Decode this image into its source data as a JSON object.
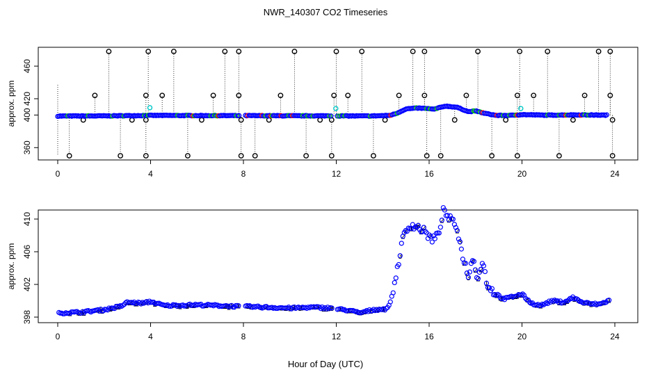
{
  "title": "NWR_140307  CO2 Timeseries",
  "xlabel": "Hour of Day (UTC)",
  "colors": {
    "main": "#0000ff",
    "alt1": "#ff0000",
    "alt2": "#00c800",
    "flag": "#00c8c8",
    "outlier": "#000000"
  },
  "chart_data": [
    {
      "type": "scatter",
      "ylabel": "approx. ppm",
      "xlim": [
        0,
        24
      ],
      "ylim": [
        350,
        480
      ],
      "xticks": [
        0,
        4,
        8,
        12,
        16,
        20,
        24
      ],
      "yticks": [
        360,
        400,
        420,
        460
      ],
      "ytick_labels": [
        "360",
        "400",
        "420",
        "460"
      ],
      "baseline": [
        [
          0.0,
          398.7
        ],
        [
          2.0,
          398.9
        ],
        [
          3.6,
          399.3
        ],
        [
          3.8,
          399.5
        ],
        [
          4.1,
          399.5
        ],
        [
          6.0,
          399.3
        ],
        [
          7.8,
          399.2
        ],
        [
          8.2,
          399.2
        ],
        [
          10.0,
          399.0
        ],
        [
          11.9,
          399.0
        ],
        [
          12.1,
          398.9
        ],
        [
          13.5,
          398.8
        ],
        [
          14.3,
          399.5
        ],
        [
          14.6,
          402.0
        ],
        [
          15.0,
          407.5
        ],
        [
          15.5,
          408.5
        ],
        [
          15.9,
          408.0
        ],
        [
          16.2,
          407.0
        ],
        [
          16.7,
          411.0
        ],
        [
          17.2,
          409.5
        ],
        [
          17.7,
          404.0
        ],
        [
          18.0,
          405.0
        ],
        [
          18.4,
          402.0
        ],
        [
          18.9,
          399.5
        ],
        [
          19.5,
          399.5
        ],
        [
          20.0,
          400.5
        ],
        [
          21.0,
          399.8
        ],
        [
          22.3,
          400.2
        ],
        [
          23.7,
          399.8
        ]
      ],
      "outliers_high": [
        2.2,
        3.9,
        5.0,
        7.2,
        7.8,
        10.2,
        12.0,
        13.1,
        15.3,
        15.8,
        18.1,
        19.9,
        21.1,
        23.3,
        23.8
      ],
      "outliers_high_value": 478,
      "outliers_low": [
        0.5,
        2.7,
        3.8,
        5.6,
        7.9,
        8.5,
        10.7,
        11.8,
        13.6,
        15.9,
        16.5,
        18.7,
        19.8,
        21.6,
        23.9
      ],
      "outliers_low_value": 350,
      "outliers_mid": [
        1.6,
        3.8,
        4.5,
        6.7,
        7.8,
        9.6,
        11.9,
        12.5,
        14.7,
        15.8,
        17.6,
        19.8,
        20.5,
        22.7,
        23.8
      ],
      "outliers_mid_value": 424,
      "outliers_small": [
        1.1,
        3.2,
        3.8,
        6.2,
        7.9,
        9.1,
        11.3,
        11.8,
        14.1,
        17.1,
        19.3,
        22.2,
        23.9
      ],
      "outliers_small_value": 394,
      "flagged": [
        [
          3.97,
          409
        ],
        [
          11.98,
          408
        ],
        [
          19.95,
          408
        ]
      ]
    },
    {
      "type": "scatter",
      "ylabel": "approx. ppm",
      "xlim": [
        0,
        24
      ],
      "ylim": [
        398,
        411.8
      ],
      "xticks": [
        0,
        4,
        8,
        12,
        16,
        20,
        24
      ],
      "yticks": [
        398,
        402,
        406,
        410
      ],
      "ytick_labels": [
        "398",
        "402",
        "406",
        "410"
      ],
      "series": [
        [
          0.0,
          398.5
        ],
        [
          1.0,
          398.6
        ],
        [
          2.0,
          398.9
        ],
        [
          2.7,
          399.3
        ],
        [
          3.0,
          399.8
        ],
        [
          3.7,
          399.7
        ],
        [
          4.0,
          399.9
        ],
        [
          4.6,
          399.4
        ],
        [
          6.0,
          399.5
        ],
        [
          7.0,
          399.4
        ],
        [
          7.8,
          399.3
        ],
        [
          8.0,
          399.3
        ],
        [
          9.0,
          399.2
        ],
        [
          10.0,
          399.1
        ],
        [
          11.0,
          399.2
        ],
        [
          11.8,
          399.1
        ],
        [
          12.0,
          399.0
        ],
        [
          12.6,
          398.8
        ],
        [
          13.0,
          398.5
        ],
        [
          13.6,
          398.9
        ],
        [
          14.2,
          399.0
        ],
        [
          14.4,
          400.5
        ],
        [
          14.6,
          403.5
        ],
        [
          14.9,
          408.0
        ],
        [
          15.2,
          409.3
        ],
        [
          15.5,
          409.0
        ],
        [
          15.8,
          408.5
        ],
        [
          16.1,
          407.5
        ],
        [
          16.4,
          408.0
        ],
        [
          16.6,
          411.0
        ],
        [
          16.9,
          410.0
        ],
        [
          17.2,
          409.0
        ],
        [
          17.4,
          406.0
        ],
        [
          17.7,
          403.0
        ],
        [
          17.9,
          405.5
        ],
        [
          18.1,
          402.5
        ],
        [
          18.3,
          405.0
        ],
        [
          18.5,
          402.0
        ],
        [
          18.8,
          401.0
        ],
        [
          19.2,
          400.2
        ],
        [
          19.6,
          400.5
        ],
        [
          20.0,
          400.8
        ],
        [
          20.4,
          399.7
        ],
        [
          20.8,
          399.4
        ],
        [
          21.3,
          400.0
        ],
        [
          21.8,
          399.8
        ],
        [
          22.2,
          400.4
        ],
        [
          22.6,
          399.8
        ],
        [
          23.0,
          399.6
        ],
        [
          23.4,
          399.6
        ],
        [
          23.7,
          400.0
        ]
      ]
    }
  ]
}
